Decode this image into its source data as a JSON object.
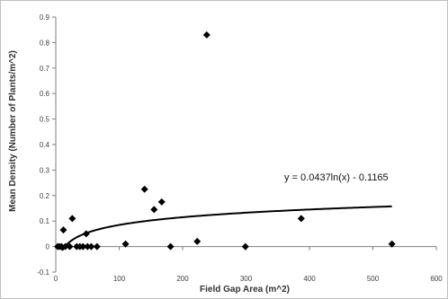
{
  "chart_data": {
    "type": "scatter",
    "xlabel": "Field Gap Area (m^2)",
    "ylabel": "Mean Density (Number of Plants/m^2)",
    "xlim": [
      0,
      600
    ],
    "ylim": [
      -0.1,
      0.9
    ],
    "x_ticks": [
      0,
      100,
      200,
      300,
      400,
      500,
      600
    ],
    "y_ticks": [
      -0.1,
      0,
      0.1,
      0.2,
      0.3,
      0.4,
      0.5,
      0.6,
      0.7,
      0.8,
      0.9
    ],
    "x_tick_labels": [
      "0",
      "100",
      "200",
      "300",
      "400",
      "500",
      "600"
    ],
    "y_tick_labels": [
      "-0.1",
      "0",
      "0.1",
      "0.2",
      "0.3",
      "0.4",
      "0.5",
      "0.6",
      "0.7",
      "0.8",
      "0.9"
    ],
    "grid": false,
    "marker": "diamond",
    "marker_color": "#000000",
    "points": [
      {
        "x": 3,
        "y": 0.0
      },
      {
        "x": 6,
        "y": 0.0
      },
      {
        "x": 9,
        "y": 0.0
      },
      {
        "x": 12,
        "y": 0.065
      },
      {
        "x": 15,
        "y": 0.0
      },
      {
        "x": 22,
        "y": 0.0
      },
      {
        "x": 26,
        "y": 0.11
      },
      {
        "x": 33,
        "y": 0.0
      },
      {
        "x": 38,
        "y": 0.0
      },
      {
        "x": 43,
        "y": 0.0
      },
      {
        "x": 48,
        "y": 0.05
      },
      {
        "x": 50,
        "y": 0.0
      },
      {
        "x": 56,
        "y": 0.0
      },
      {
        "x": 65,
        "y": 0.0
      },
      {
        "x": 110,
        "y": 0.01
      },
      {
        "x": 140,
        "y": 0.225
      },
      {
        "x": 155,
        "y": 0.145
      },
      {
        "x": 167,
        "y": 0.175
      },
      {
        "x": 181,
        "y": 0.0
      },
      {
        "x": 223,
        "y": 0.02
      },
      {
        "x": 238,
        "y": 0.83
      },
      {
        "x": 299,
        "y": 0.0
      },
      {
        "x": 387,
        "y": 0.11
      },
      {
        "x": 530,
        "y": 0.01
      }
    ],
    "trendline": {
      "type": "logarithmic",
      "a": 0.0437,
      "b": -0.1165,
      "x_start": 10,
      "x_end": 530,
      "color": "#000000",
      "equation_label": "y = 0.0437ln(x) - 0.1165"
    }
  }
}
